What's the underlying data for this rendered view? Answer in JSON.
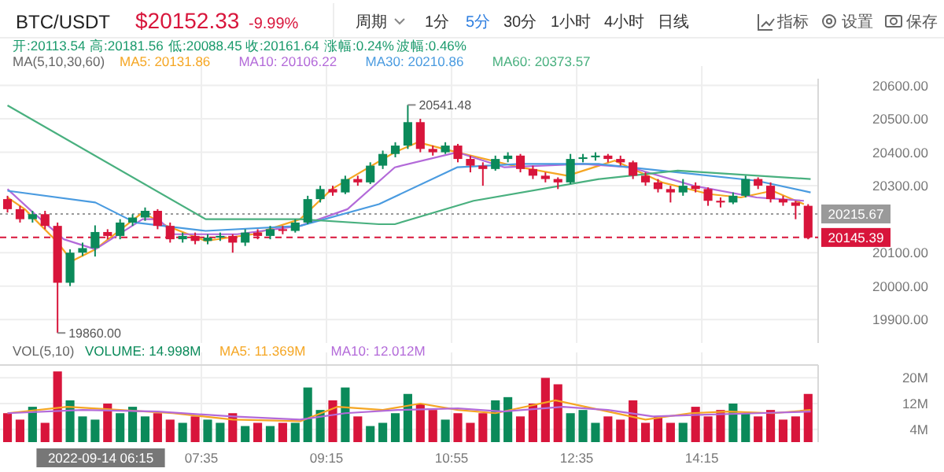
{
  "chart_data": [
    {
      "type": "candlestick",
      "title": "BTC/USDT",
      "annotations": [
        "$20152.33",
        "-9.99%",
        "周期",
        "1分",
        "5分",
        "30分",
        "1小时",
        "4小时",
        "日线",
        "指标",
        "设置",
        "保存",
        "开:20113.54",
        "高:20181.56",
        "低:20088.45",
        "收:20161.64",
        "涨幅:0.24%",
        "波幅:0.46%",
        "MA(5,10,30,60)",
        {
          "text": "20541.48",
          "x": 10.3333,
          "y": 20541.48
        },
        {
          "text": "19860.00",
          "x": 5.6667,
          "y": 19860
        }
      ],
      "x": [
        5,
        5.1667,
        5.3333,
        5.5,
        5.6667,
        5.8333,
        6,
        6.1667,
        6.3333,
        6.5,
        6.6667,
        6.8333,
        7,
        7.1667,
        7.3333,
        7.5,
        7.6667,
        7.8333,
        8,
        8.1667,
        8.3333,
        8.5,
        8.6667,
        8.8333,
        9,
        9.1667,
        9.3333,
        9.5,
        9.6667,
        9.8333,
        10,
        10.1667,
        10.3333,
        10.5,
        10.6667,
        10.8333,
        11,
        11.1667,
        11.3333,
        11.5,
        11.6667,
        11.8333,
        12,
        12.1667,
        12.3333,
        12.5,
        12.6667,
        12.8333,
        13,
        13.1667,
        13.3333,
        13.5,
        13.6667,
        13.8333,
        14,
        14.1667,
        14.3333,
        14.5,
        14.6667,
        14.8333,
        15,
        15.1667,
        15.3333,
        15.5,
        15.6667
      ],
      "ohlc": [
        [
          20260,
          20270,
          20220,
          20230
        ],
        [
          20230,
          20240,
          20190,
          20200
        ],
        [
          20200,
          20225,
          20190,
          20215
        ],
        [
          20215,
          20225,
          20170,
          20180
        ],
        [
          20180,
          20190,
          19860,
          20010
        ],
        [
          20010,
          20110,
          20000,
          20100
        ],
        [
          20100,
          20130,
          20090,
          20113.54
        ],
        [
          20113.54,
          20181.56,
          20088.45,
          20161.64
        ],
        [
          20161.64,
          20170,
          20140,
          20150
        ],
        [
          20150,
          20200,
          20140,
          20190
        ],
        [
          20190,
          20215,
          20180,
          20205
        ],
        [
          20205,
          20235,
          20195,
          20225
        ],
        [
          20225,
          20230,
          20170,
          20180
        ],
        [
          20180,
          20190,
          20130,
          20140
        ],
        [
          20140,
          20160,
          20130,
          20150
        ],
        [
          20150,
          20160,
          20125,
          20135
        ],
        [
          20135,
          20155,
          20125,
          20145
        ],
        [
          20145,
          20160,
          20135,
          20150
        ],
        [
          20150,
          20155,
          20100,
          20130
        ],
        [
          20130,
          20170,
          20120,
          20160
        ],
        [
          20160,
          20170,
          20140,
          20150
        ],
        [
          20150,
          20180,
          20140,
          20170
        ],
        [
          20170,
          20180,
          20155,
          20165
        ],
        [
          20165,
          20200,
          20160,
          20190
        ],
        [
          20190,
          20270,
          20185,
          20260
        ],
        [
          20260,
          20300,
          20250,
          20290
        ],
        [
          20290,
          20300,
          20270,
          20280
        ],
        [
          20280,
          20330,
          20275,
          20320
        ],
        [
          20320,
          20330,
          20300,
          20310
        ],
        [
          20310,
          20370,
          20305,
          20360
        ],
        [
          20360,
          20405,
          20350,
          20395
        ],
        [
          20395,
          20430,
          20385,
          20420
        ],
        [
          20420,
          20541.48,
          20410,
          20490
        ],
        [
          20490,
          20500,
          20400,
          20410
        ],
        [
          20410,
          20420,
          20390,
          20400
        ],
        [
          20400,
          20430,
          20395,
          20420
        ],
        [
          20420,
          20425,
          20370,
          20380
        ],
        [
          20380,
          20390,
          20340,
          20360
        ],
        [
          20360,
          20370,
          20300,
          20350
        ],
        [
          20350,
          20390,
          20345,
          20380
        ],
        [
          20380,
          20400,
          20370,
          20390
        ],
        [
          20390,
          20395,
          20340,
          20350
        ],
        [
          20350,
          20360,
          20320,
          20330
        ],
        [
          20330,
          20340,
          20310,
          20320
        ],
        [
          20320,
          20325,
          20290,
          20310
        ],
        [
          20310,
          20395,
          20305,
          20380
        ],
        [
          20380,
          20395,
          20370,
          20385
        ],
        [
          20385,
          20400,
          20375,
          20390
        ],
        [
          20390,
          20395,
          20370,
          20380
        ],
        [
          20380,
          20390,
          20360,
          20370
        ],
        [
          20370,
          20375,
          20320,
          20330
        ],
        [
          20330,
          20340,
          20300,
          20310
        ],
        [
          20310,
          20320,
          20280,
          20290
        ],
        [
          20290,
          20300,
          20250,
          20280
        ],
        [
          20280,
          20320,
          20270,
          20300
        ],
        [
          20300,
          20310,
          20280,
          20290
        ],
        [
          20290,
          20295,
          20240,
          20255
        ],
        [
          20255,
          20265,
          20235,
          20250
        ],
        [
          20250,
          20280,
          20245,
          20270
        ],
        [
          20270,
          20330,
          20265,
          20320
        ],
        [
          20320,
          20325,
          20290,
          20300
        ],
        [
          20300,
          20310,
          20250,
          20260
        ],
        [
          20260,
          20270,
          20240,
          20250
        ],
        [
          20250,
          20255,
          20200,
          20240
        ],
        [
          20240,
          20245,
          20140,
          20145.39
        ]
      ],
      "colors": [
        "#d8153b",
        "#d8153b",
        "#0b8a5a",
        "#d8153b",
        "#d8153b",
        "#0b8a5a",
        "#0b8a5a",
        "#0b8a5a",
        "#d8153b",
        "#0b8a5a",
        "#0b8a5a",
        "#0b8a5a",
        "#d8153b",
        "#d8153b",
        "#0b8a5a",
        "#d8153b",
        "#0b8a5a",
        "#0b8a5a",
        "#d8153b",
        "#0b8a5a",
        "#d8153b",
        "#0b8a5a",
        "#d8153b",
        "#0b8a5a",
        "#0b8a5a",
        "#0b8a5a",
        "#d8153b",
        "#0b8a5a",
        "#d8153b",
        "#0b8a5a",
        "#0b8a5a",
        "#0b8a5a",
        "#0b8a5a",
        "#d8153b",
        "#d8153b",
        "#0b8a5a",
        "#d8153b",
        "#d8153b",
        "#d8153b",
        "#0b8a5a",
        "#0b8a5a",
        "#d8153b",
        "#d8153b",
        "#d8153b",
        "#d8153b",
        "#0b8a5a",
        "#0b8a5a",
        "#0b8a5a",
        "#d8153b",
        "#d8153b",
        "#d8153b",
        "#d8153b",
        "#d8153b",
        "#d8153b",
        "#0b8a5a",
        "#d8153b",
        "#d8153b",
        "#d8153b",
        "#0b8a5a",
        "#0b8a5a",
        "#d8153b",
        "#d8153b",
        "#d8153b",
        "#d8153b",
        "#d8153b"
      ],
      "series": [
        {
          "type": "line",
          "name": "MA5: 20131.86",
          "color": "#f5a623",
          "x": [
            5,
            5.23,
            5.65,
            5.86,
            6.17,
            6.8,
            7.12,
            7.64,
            8.27,
            8.9,
            9.32,
            10.16,
            10.47,
            10.99,
            11.83,
            12.46,
            13.09,
            13.72,
            14.35,
            14.77,
            15.19,
            15.61
          ],
          "values": [
            20265,
            20230,
            20135,
            20075,
            20110,
            20220,
            20180,
            20135,
            20155,
            20200,
            20290,
            20400,
            20430,
            20400,
            20355,
            20330,
            20375,
            20310,
            20275,
            20265,
            20285,
            20245
          ]
        },
        {
          "type": "line",
          "name": "MA10: 20106.22",
          "color": "#b36ad9",
          "x": [
            5,
            5.34,
            5.75,
            6.17,
            6.8,
            7.01,
            7.22,
            8.06,
            8.9,
            9.53,
            10.16,
            10.99,
            11.62,
            12.67,
            13.3,
            14.14,
            14.98,
            15.61
          ],
          "values": [
            20290,
            20220,
            20140,
            20110,
            20200,
            20200,
            20155,
            20155,
            20180,
            20230,
            20355,
            20400,
            20355,
            20365,
            20355,
            20300,
            20265,
            20255
          ]
        },
        {
          "type": "line",
          "name": "MA30: 20210.86",
          "color": "#4a9be0",
          "x": [
            5,
            6.17,
            6.7,
            7.64,
            8.9,
            9.95,
            10.99,
            11.83,
            12.88,
            13.93,
            14.98,
            15.7
          ],
          "values": [
            20285,
            20250,
            20190,
            20165,
            20180,
            20245,
            20355,
            20365,
            20365,
            20340,
            20315,
            20280
          ]
        },
        {
          "type": "line",
          "name": "MA60: 20373.57",
          "color": "#49b07f",
          "x": [
            5,
            7.64,
            8.9,
            9.95,
            10.16,
            11.21,
            12.88,
            13.93,
            15.7
          ],
          "values": [
            20540,
            20200,
            20200,
            20185,
            20185,
            20255,
            20320,
            20345,
            20320
          ]
        }
      ],
      "xlim": [
        4.9,
        15.8
      ],
      "ylim": [
        19830,
        20620
      ],
      "xticks": [
        {
          "value": 7.5833,
          "label": null
        },
        {
          "value": 9.25,
          "label": null
        },
        {
          "value": 10.9167,
          "label": null
        },
        {
          "value": 12.5833,
          "label": null
        },
        {
          "value": 14.25,
          "label": null
        }
      ],
      "yticks": [
        {
          "value": 19900,
          "label": "19900.00"
        },
        {
          "value": 20000,
          "label": "20000.00"
        },
        {
          "value": 20100,
          "label": "20100.00"
        },
        {
          "value": 20300,
          "label": "20300.00"
        },
        {
          "value": 20400,
          "label": "20400.00"
        },
        {
          "value": 20500,
          "label": "20500.00"
        },
        {
          "value": 20600,
          "label": "20600.00"
        }
      ],
      "ref_lines": [
        {
          "axis": "y",
          "value": 20215.67,
          "label": "20215.67",
          "color": "#9a9a9a",
          "line_style": "dotted"
        },
        {
          "axis": "y",
          "value": 20145.39,
          "label": "20145.39",
          "color": "#d8153b",
          "line_style": "dashed"
        }
      ],
      "grid": true,
      "legend": "top",
      "tick_labels": "y"
    },
    {
      "type": "bar",
      "annotations": [
        "VOL(5,10)",
        "2022-09-14 06:15"
      ],
      "x": [
        5,
        5.1667,
        5.3333,
        5.5,
        5.6667,
        5.8333,
        6,
        6.1667,
        6.3333,
        6.5,
        6.6667,
        6.8333,
        7,
        7.1667,
        7.3333,
        7.5,
        7.6667,
        7.8333,
        8,
        8.1667,
        8.3333,
        8.5,
        8.6667,
        8.8333,
        9,
        9.1667,
        9.3333,
        9.5,
        9.6667,
        9.8333,
        10,
        10.1667,
        10.3333,
        10.5,
        10.6667,
        10.8333,
        11,
        11.1667,
        11.3333,
        11.5,
        11.6667,
        11.8333,
        12,
        12.1667,
        12.3333,
        12.5,
        12.6667,
        12.8333,
        13,
        13.1667,
        13.3333,
        13.5,
        13.6667,
        13.8333,
        14,
        14.1667,
        14.3333,
        14.5,
        14.6667,
        14.8333,
        15,
        15.1667,
        15.3333,
        15.5,
        15.6667
      ],
      "series": [
        {
          "type": "bar",
          "name": "VOLUME: 14.998M",
          "color": "#0b8a5a",
          "colors": [
            "#d8153b",
            "#d8153b",
            "#0b8a5a",
            "#d8153b",
            "#d8153b",
            "#0b8a5a",
            "#0b8a5a",
            "#0b8a5a",
            "#d8153b",
            "#0b8a5a",
            "#0b8a5a",
            "#0b8a5a",
            "#d8153b",
            "#d8153b",
            "#0b8a5a",
            "#d8153b",
            "#0b8a5a",
            "#0b8a5a",
            "#d8153b",
            "#0b8a5a",
            "#d8153b",
            "#0b8a5a",
            "#d8153b",
            "#0b8a5a",
            "#0b8a5a",
            "#0b8a5a",
            "#d8153b",
            "#0b8a5a",
            "#d8153b",
            "#0b8a5a",
            "#0b8a5a",
            "#0b8a5a",
            "#0b8a5a",
            "#d8153b",
            "#d8153b",
            "#0b8a5a",
            "#d8153b",
            "#d8153b",
            "#d8153b",
            "#0b8a5a",
            "#0b8a5a",
            "#d8153b",
            "#d8153b",
            "#d8153b",
            "#d8153b",
            "#0b8a5a",
            "#0b8a5a",
            "#0b8a5a",
            "#d8153b",
            "#d8153b",
            "#d8153b",
            "#d8153b",
            "#d8153b",
            "#d8153b",
            "#0b8a5a",
            "#d8153b",
            "#d8153b",
            "#d8153b",
            "#0b8a5a",
            "#0b8a5a",
            "#d8153b",
            "#d8153b",
            "#d8153b",
            "#d8153b",
            "#d8153b"
          ],
          "values": [
            9,
            7,
            11,
            6,
            22,
            13,
            8,
            7,
            12,
            9,
            11,
            8,
            9,
            7,
            6,
            8,
            7,
            6,
            9,
            5,
            6,
            5,
            6,
            6,
            17,
            10,
            13,
            17,
            8,
            5,
            6,
            9,
            15,
            12,
            10,
            7,
            9,
            6,
            9,
            13,
            14,
            8,
            12,
            20,
            18,
            9,
            10,
            6,
            8,
            7,
            13,
            6,
            8,
            6,
            6,
            11,
            8,
            10,
            12,
            9,
            8,
            10,
            7,
            8,
            15
          ]
        },
        {
          "type": "line",
          "name": "MA5: 11.369M",
          "color": "#f5a623",
          "x": [
            5,
            5.8,
            6.5,
            7.2,
            8,
            8.9,
            9.4,
            10,
            10.5,
            11,
            11.5,
            12.3,
            12.9,
            13.5,
            14.1,
            14.6,
            15.2,
            15.7
          ],
          "values": [
            9,
            11,
            10,
            9,
            7,
            6.5,
            11,
            10,
            12,
            10,
            9,
            13,
            10,
            7,
            9,
            9.5,
            9,
            10
          ]
        },
        {
          "type": "line",
          "name": "MA10: 12.012M",
          "color": "#b36ad9",
          "x": [
            5,
            6,
            7,
            8,
            8.9,
            9.5,
            10.2,
            11,
            11.6,
            12.4,
            13,
            13.6,
            14.2,
            15,
            15.7
          ],
          "values": [
            9,
            10,
            9.5,
            8,
            7,
            9,
            10,
            10.5,
            9.5,
            11,
            10,
            8,
            8.5,
            9,
            9.5
          ]
        }
      ],
      "xlim": [
        4.9,
        15.8
      ],
      "ylim": [
        0,
        24
      ],
      "xticks": [
        {
          "value": 7.5833,
          "label": "07:35"
        },
        {
          "value": 9.25,
          "label": "09:15"
        },
        {
          "value": 10.9167,
          "label": "10:55"
        },
        {
          "value": 12.5833,
          "label": "12:35"
        },
        {
          "value": 14.25,
          "label": "14:15"
        }
      ],
      "yticks": [
        {
          "value": 4,
          "label": "4M"
        },
        {
          "value": 12,
          "label": "12M"
        },
        {
          "value": 20,
          "label": "20M"
        }
      ],
      "grid": true,
      "legend": "top"
    }
  ]
}
